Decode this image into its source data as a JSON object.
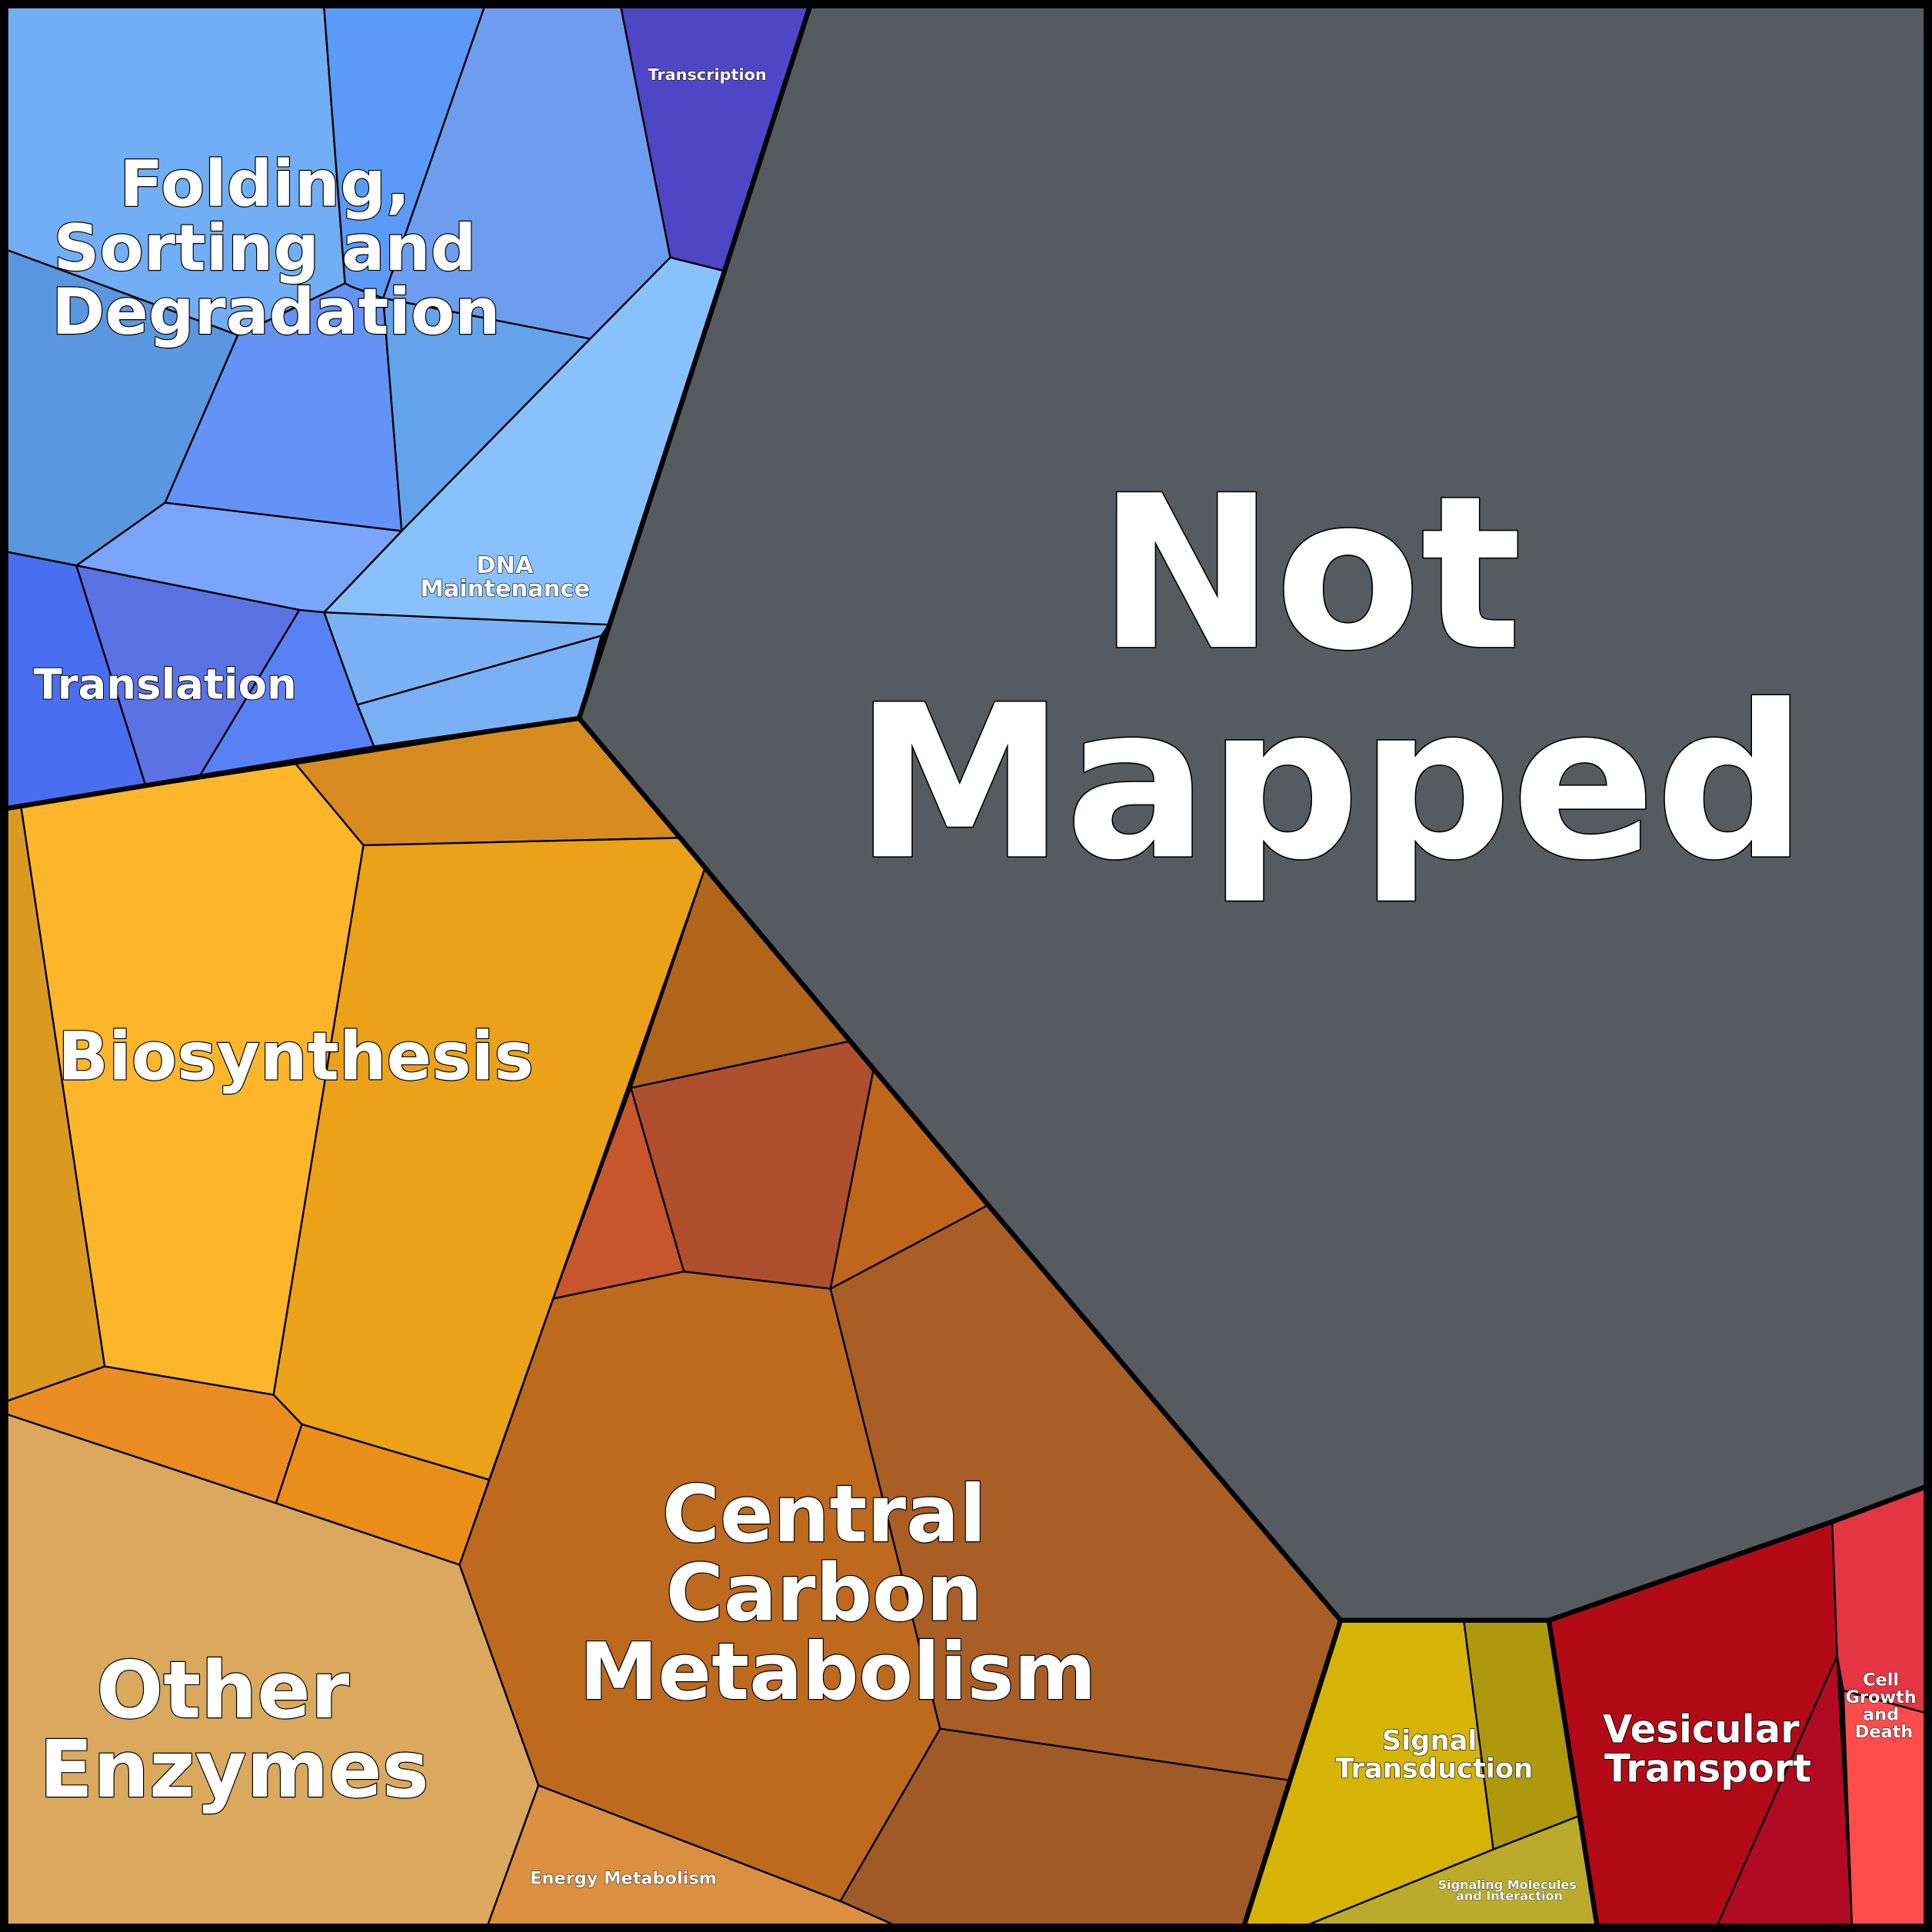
{
  "labels": [
    {
      "lines": [
        "Not",
        "Mapped"
      ]
    },
    {
      "lines": [
        "Folding,",
        "Sorting and",
        "Degradation"
      ]
    },
    {
      "lines": [
        "Transcription"
      ]
    },
    {
      "lines": [
        "DNA",
        "Maintenance"
      ]
    },
    {
      "lines": [
        "Translation"
      ]
    },
    {
      "lines": [
        "Biosynthesis"
      ]
    },
    {
      "lines": [
        "Central",
        "Carbon",
        "Metabolism"
      ]
    },
    {
      "lines": [
        "Other",
        "Enzymes"
      ]
    },
    {
      "lines": [
        "Energy Metabolism"
      ]
    },
    {
      "lines": [
        "Signal",
        "Transduction"
      ]
    },
    {
      "lines": [
        "Signaling Molecules",
        "and Interaction"
      ]
    },
    {
      "lines": [
        "Vesicular",
        "Transport"
      ]
    },
    {
      "lines": [
        "Cell",
        "Growth",
        "and",
        "Death"
      ]
    }
  ]
}
